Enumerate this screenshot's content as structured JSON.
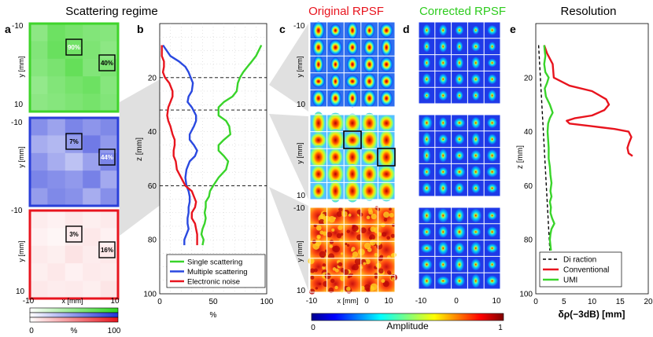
{
  "titles": {
    "scattering_regime": "Scattering regime",
    "original_rpsf": "Original RPSF",
    "corrected_rpsf": "Corrected RPSF",
    "resolution": "Resolution"
  },
  "title_colors": {
    "original": "#e8141e",
    "corrected": "#2ecc1e",
    "black": "#000000"
  },
  "panel_letters": {
    "a": "a",
    "b": "b",
    "c": "c",
    "d": "d",
    "e": "e"
  },
  "panel_a": {
    "ylabel": "y [mm]",
    "xlabel": "x [mm]",
    "y_ticks": [
      "-10",
      "10"
    ],
    "x_ticks": [
      "-10",
      "10"
    ],
    "maps": [
      {
        "name": "green",
        "border": "#3fd42b",
        "labels": [
          "90%",
          "40%"
        ]
      },
      {
        "name": "blue",
        "border": "#2a3fd9",
        "labels": [
          "7%",
          "44%"
        ]
      },
      {
        "name": "red",
        "border": "#e8141e",
        "labels": [
          "3%",
          "16%"
        ]
      }
    ],
    "colorbar_ticks": [
      "0",
      "%",
      "100"
    ]
  },
  "panel_b": {
    "ylabel": "z [mm]",
    "xlabel": "%",
    "x_ticks": [
      "0",
      "50",
      "100"
    ],
    "y_ticks": [
      "20",
      "40",
      "60",
      "80",
      "100"
    ],
    "legend": [
      "Single scattering",
      "Multiple scattering",
      "Electronic noise"
    ],
    "legend_colors": [
      "#39d42a",
      "#2a49e0",
      "#e8141e"
    ]
  },
  "panel_c": {
    "ylabel": "y [mm]",
    "xlabel": "x [mm]",
    "y_ticks": [
      "-10",
      "10"
    ],
    "x_ticks": [
      "-10",
      "0",
      "10"
    ],
    "colorbar_label": "Amplitude",
    "colorbar_ticks": [
      "0",
      "1"
    ]
  },
  "panel_d": {
    "x_ticks": [
      "-10",
      "0",
      "10"
    ]
  },
  "panel_e": {
    "ylabel": "z [mm]",
    "xlabel": "δρ(−3dB) [mm]",
    "x_ticks": [
      "0",
      "5",
      "10",
      "15",
      "20"
    ],
    "y_ticks": [
      "20",
      "40",
      "60",
      "80",
      "100"
    ],
    "legend": [
      "Di raction",
      "Conventional",
      "UMI"
    ]
  },
  "chart_data": [
    {
      "type": "line",
      "title": "Scattering regime",
      "xlabel": "%",
      "ylabel": "z [mm]",
      "xlim": [
        0,
        100
      ],
      "ylim": [
        0,
        100
      ],
      "dashed_z": [
        20,
        32,
        60
      ],
      "series": [
        {
          "name": "Single scattering",
          "color": "#39d42a",
          "x": [
            95,
            90,
            86,
            82,
            78,
            75,
            73,
            72,
            68,
            60,
            55,
            55,
            62,
            65,
            66,
            60,
            55,
            55,
            60,
            64,
            62,
            55,
            50,
            47,
            46,
            43,
            43,
            42,
            43,
            42,
            40,
            39,
            41,
            40
          ],
          "y": [
            8,
            12,
            14,
            16,
            18,
            20,
            22,
            25,
            27,
            29,
            31,
            34,
            36,
            38,
            41,
            43,
            45,
            47,
            49,
            51,
            54,
            57,
            60,
            62,
            64,
            66,
            68,
            70,
            72,
            74,
            76,
            78,
            80,
            82
          ]
        },
        {
          "name": "Multiple scattering",
          "color": "#2a49e0",
          "x": [
            3,
            10,
            18,
            24,
            27,
            29,
            31,
            30,
            27,
            26,
            30,
            34,
            34,
            32,
            28,
            28,
            32,
            35,
            33,
            28,
            25,
            24,
            25,
            27,
            28,
            28,
            27,
            27,
            26,
            26,
            27,
            25,
            23,
            23
          ],
          "y": [
            8,
            12,
            14,
            16,
            18,
            20,
            22,
            25,
            27,
            29,
            31,
            34,
            36,
            38,
            41,
            43,
            45,
            47,
            49,
            51,
            54,
            57,
            60,
            62,
            64,
            66,
            68,
            70,
            72,
            74,
            76,
            78,
            80,
            82
          ]
        },
        {
          "name": "Electronic noise",
          "color": "#e8141e",
          "x": [
            2,
            2,
            4,
            4,
            3,
            5,
            9,
            12,
            12,
            10,
            8,
            7,
            8,
            10,
            12,
            14,
            14,
            13,
            13,
            15,
            16,
            20,
            24,
            30,
            32,
            34,
            33,
            30,
            30,
            33,
            34,
            35,
            35,
            35
          ],
          "y": [
            8,
            12,
            14,
            16,
            18,
            20,
            22,
            25,
            27,
            29,
            31,
            34,
            36,
            38,
            41,
            43,
            45,
            47,
            49,
            51,
            54,
            57,
            60,
            62,
            64,
            66,
            68,
            70,
            72,
            74,
            76,
            78,
            80,
            82
          ]
        }
      ]
    },
    {
      "type": "line",
      "title": "Resolution",
      "xlabel": "δρ(−3dB) [mm]",
      "ylabel": "z [mm]",
      "xlim": [
        0,
        20
      ],
      "ylim": [
        0,
        100
      ],
      "series": [
        {
          "name": "Di raction",
          "color": "#000000",
          "dashed": true,
          "x": [
            0.5,
            2.5
          ],
          "y": [
            8,
            84
          ]
        },
        {
          "name": "Conventional",
          "color": "#e8141e",
          "x": [
            1.5,
            2.0,
            3.0,
            3.2,
            6,
            10,
            12.5,
            13,
            12.2,
            10,
            7,
            5.5,
            6,
            10,
            14,
            16.5,
            17,
            16.6,
            16.3,
            16.5,
            17.2
          ],
          "y": [
            8,
            11,
            15,
            20,
            23,
            25,
            28,
            30,
            32,
            34,
            35,
            36,
            37,
            38,
            39,
            40,
            42,
            44,
            46,
            48,
            49
          ]
        },
        {
          "name": "UMI",
          "color": "#39d42a",
          "x": [
            1.5,
            1.6,
            1.7,
            1.5,
            1.7,
            2.3,
            2.0,
            1.6,
            1.8,
            2.5,
            3.0,
            2.5,
            2.2,
            2.1,
            2.2,
            2.3,
            2.3,
            2.5,
            2.6,
            2.8,
            2.6,
            2.8,
            2.5,
            2.7,
            2.6,
            2.9,
            3.3,
            2.8,
            2.6,
            2.5,
            2.6,
            2.7
          ],
          "y": [
            8,
            10,
            12,
            15,
            18,
            20,
            22,
            24,
            27,
            30,
            33,
            35,
            37,
            40,
            43,
            46,
            50,
            53,
            56,
            59,
            62,
            64,
            66,
            68,
            70,
            72,
            74,
            76,
            78,
            80,
            82,
            84
          ]
        }
      ]
    }
  ]
}
